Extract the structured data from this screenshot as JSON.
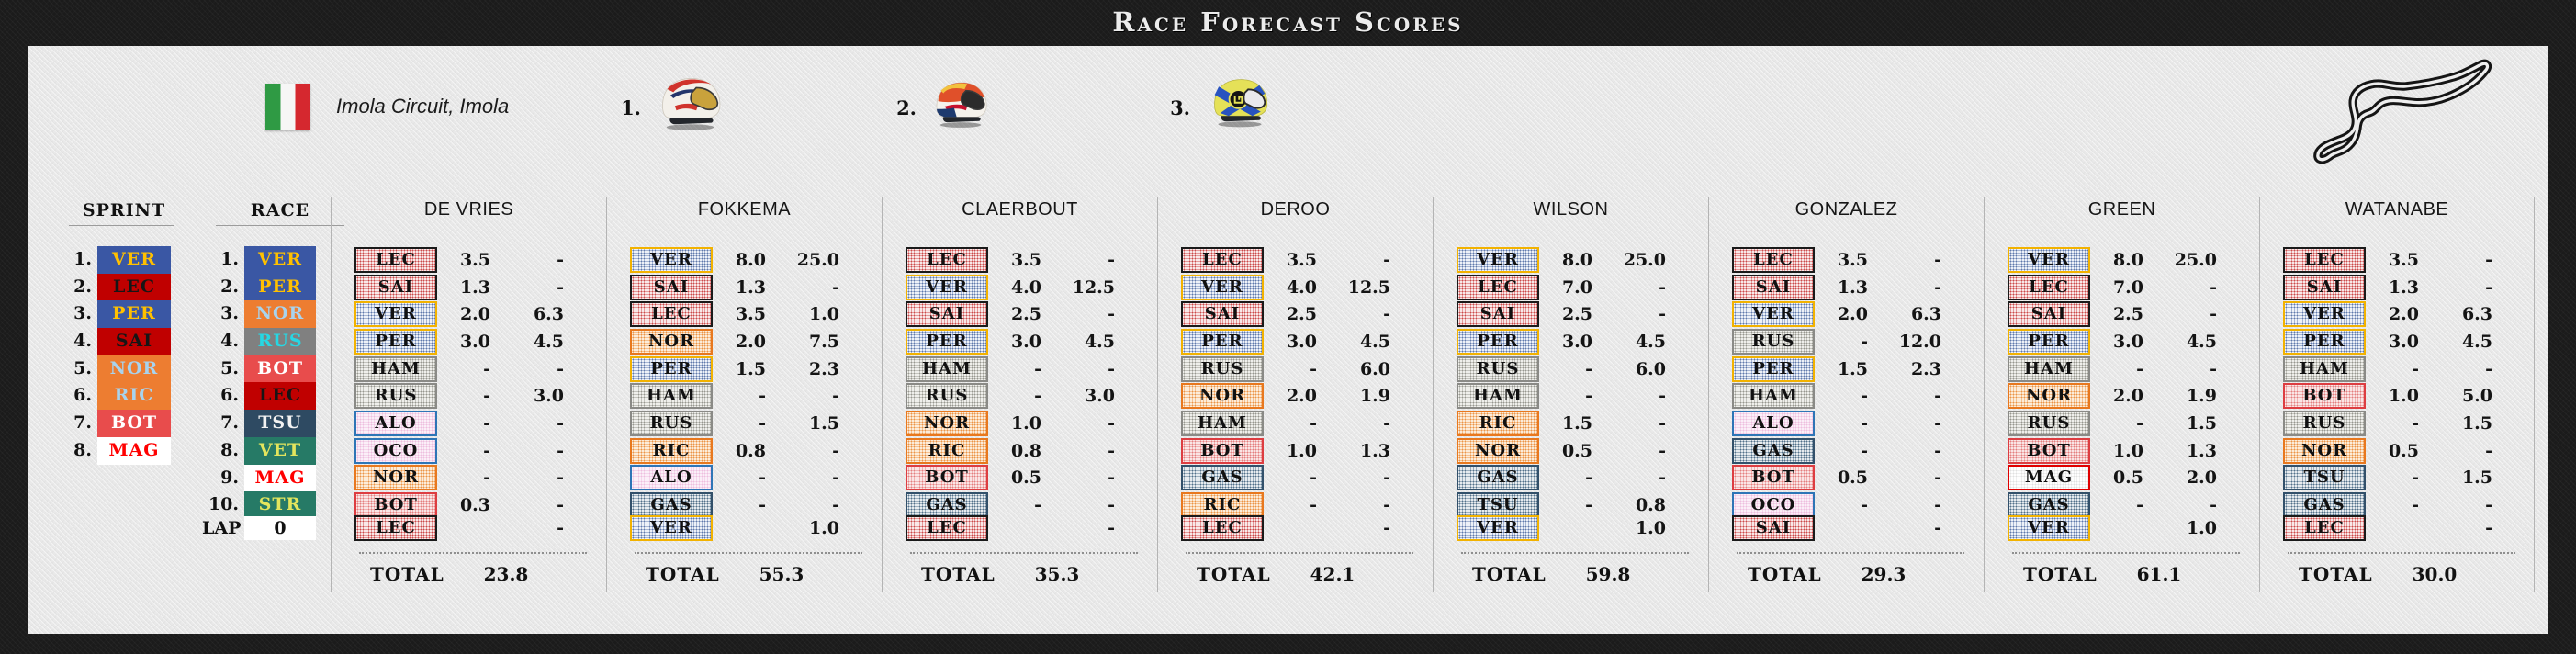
{
  "title": "Race Forecast Scores",
  "event": {
    "circuit_name": "Imola Circuit, Imola",
    "flag_country": "Italy"
  },
  "podium": [
    {
      "position": "1.",
      "helmet": "verstappen-redbull-helmet"
    },
    {
      "position": "2.",
      "helmet": "perez-redbull-helmet"
    },
    {
      "position": "3.",
      "helmet": "norris-mclaren-helmet"
    }
  ],
  "standings": {
    "sprint_label": "SPRINT",
    "race_label": "RACE",
    "lap_label": "LAP",
    "lap_value": "0",
    "sprint": [
      {
        "pos": "1.",
        "driver": "VER"
      },
      {
        "pos": "2.",
        "driver": "LEC"
      },
      {
        "pos": "3.",
        "driver": "PER"
      },
      {
        "pos": "4.",
        "driver": "SAI"
      },
      {
        "pos": "5.",
        "driver": "NOR"
      },
      {
        "pos": "6.",
        "driver": "RIC"
      },
      {
        "pos": "7.",
        "driver": "BOT"
      },
      {
        "pos": "8.",
        "driver": "MAG"
      }
    ],
    "race": [
      {
        "pos": "1.",
        "driver": "VER"
      },
      {
        "pos": "2.",
        "driver": "PER"
      },
      {
        "pos": "3.",
        "driver": "NOR"
      },
      {
        "pos": "4.",
        "driver": "RUS"
      },
      {
        "pos": "5.",
        "driver": "BOT"
      },
      {
        "pos": "6.",
        "driver": "LEC"
      },
      {
        "pos": "7.",
        "driver": "TSU"
      },
      {
        "pos": "8.",
        "driver": "VET"
      },
      {
        "pos": "9.",
        "driver": "MAG"
      },
      {
        "pos": "10.",
        "driver": "STR"
      }
    ]
  },
  "total_label": "TOTAL",
  "teams": {
    "VER": "redbull",
    "PER": "redbull",
    "LEC": "ferrari",
    "SAI": "ferrari",
    "NOR": "mclaren",
    "RIC": "mclaren",
    "HAM": "mercedes",
    "RUS": "mercedes",
    "BOT": "alfaromeo",
    "MAG": "haas",
    "TSU": "alphatauri",
    "GAS": "alphatauri",
    "VET": "astonmartin",
    "STR": "astonmartin",
    "ALO": "alpine",
    "OCO": "alpine"
  },
  "team_colors": {
    "redbull": {
      "bg": "#3a57a4",
      "text": "#ffc000",
      "tint": "#edf1f8",
      "dot": "#6079ab",
      "border": "#f2b200"
    },
    "ferrari": {
      "bg": "#c00000",
      "text": "#161616",
      "tint": "#f9e8e8",
      "dot": "#cc4a4a",
      "border": "#1a1a1a"
    },
    "mclaren": {
      "bg": "#ed7d31",
      "text": "#a8d3ee",
      "tint": "#fcecd9",
      "dot": "#eb9446",
      "border": "#e8781e"
    },
    "mercedes": {
      "bg": "#808080",
      "text": "#26d7e3",
      "tint": "#efefeb",
      "dot": "#97978f",
      "border": "#8a8a86"
    },
    "alfaromeo": {
      "bg": "#e84c4c",
      "text": "#ffffff",
      "tint": "#fae5e5",
      "dot": "#e47f7f",
      "border": "#dd3d41"
    },
    "haas": {
      "bg": "#ffffff",
      "text": "#ff0000",
      "tint": "#fefefe",
      "dot": "#e0e0e0",
      "border": "#e00000"
    },
    "alphatauri": {
      "bg": "#2e4a62",
      "text": "#f2f2f2",
      "tint": "#e6ebef",
      "dot": "#52708a",
      "border": "#32506a"
    },
    "astonmartin": {
      "bg": "#267a66",
      "text": "#e3e55d",
      "tint": "#e4efeb",
      "dot": "#5d9488",
      "border": "#1f6b59"
    },
    "alpine": {
      "bg": "#f7a8d8",
      "text": "#0a1e78",
      "tint": "#fbeff8",
      "dot": "#eebede",
      "border": "#2e75b6"
    }
  },
  "players": [
    {
      "name": "DE VRIES",
      "total": "23.8",
      "fastest_lap": {
        "driver": "LEC",
        "score": "-"
      },
      "predictions": [
        {
          "driver": "LEC",
          "sprint": "3.5",
          "race": "-"
        },
        {
          "driver": "SAI",
          "sprint": "1.3",
          "race": "-"
        },
        {
          "driver": "VER",
          "sprint": "2.0",
          "race": "6.3"
        },
        {
          "driver": "PER",
          "sprint": "3.0",
          "race": "4.5"
        },
        {
          "driver": "HAM",
          "sprint": "-",
          "race": "-"
        },
        {
          "driver": "RUS",
          "sprint": "-",
          "race": "3.0"
        },
        {
          "driver": "ALO",
          "sprint": "-",
          "race": "-"
        },
        {
          "driver": "OCO",
          "sprint": "-",
          "race": "-"
        },
        {
          "driver": "NOR",
          "sprint": "-",
          "race": "-"
        },
        {
          "driver": "BOT",
          "sprint": "0.3",
          "race": "-"
        }
      ]
    },
    {
      "name": "FOKKEMA",
      "total": "55.3",
      "fastest_lap": {
        "driver": "VER",
        "score": "1.0"
      },
      "predictions": [
        {
          "driver": "VER",
          "sprint": "8.0",
          "race": "25.0"
        },
        {
          "driver": "SAI",
          "sprint": "1.3",
          "race": "-"
        },
        {
          "driver": "LEC",
          "sprint": "3.5",
          "race": "1.0"
        },
        {
          "driver": "NOR",
          "sprint": "2.0",
          "race": "7.5"
        },
        {
          "driver": "PER",
          "sprint": "1.5",
          "race": "2.3"
        },
        {
          "driver": "HAM",
          "sprint": "-",
          "race": "-"
        },
        {
          "driver": "RUS",
          "sprint": "-",
          "race": "1.5"
        },
        {
          "driver": "RIC",
          "sprint": "0.8",
          "race": "-"
        },
        {
          "driver": "ALO",
          "sprint": "-",
          "race": "-"
        },
        {
          "driver": "GAS",
          "sprint": "-",
          "race": "-"
        }
      ]
    },
    {
      "name": "CLAERBOUT",
      "total": "35.3",
      "fastest_lap": {
        "driver": "LEC",
        "score": "-"
      },
      "predictions": [
        {
          "driver": "LEC",
          "sprint": "3.5",
          "race": "-"
        },
        {
          "driver": "VER",
          "sprint": "4.0",
          "race": "12.5"
        },
        {
          "driver": "SAI",
          "sprint": "2.5",
          "race": "-"
        },
        {
          "driver": "PER",
          "sprint": "3.0",
          "race": "4.5"
        },
        {
          "driver": "HAM",
          "sprint": "-",
          "race": "-"
        },
        {
          "driver": "RUS",
          "sprint": "-",
          "race": "3.0"
        },
        {
          "driver": "NOR",
          "sprint": "1.0",
          "race": "-"
        },
        {
          "driver": "RIC",
          "sprint": "0.8",
          "race": "-"
        },
        {
          "driver": "BOT",
          "sprint": "0.5",
          "race": "-"
        },
        {
          "driver": "GAS",
          "sprint": "-",
          "race": "-"
        }
      ]
    },
    {
      "name": "DEROO",
      "total": "42.1",
      "fastest_lap": {
        "driver": "LEC",
        "score": "-"
      },
      "predictions": [
        {
          "driver": "LEC",
          "sprint": "3.5",
          "race": "-"
        },
        {
          "driver": "VER",
          "sprint": "4.0",
          "race": "12.5"
        },
        {
          "driver": "SAI",
          "sprint": "2.5",
          "race": "-"
        },
        {
          "driver": "PER",
          "sprint": "3.0",
          "race": "4.5"
        },
        {
          "driver": "RUS",
          "sprint": "-",
          "race": "6.0"
        },
        {
          "driver": "NOR",
          "sprint": "2.0",
          "race": "1.9"
        },
        {
          "driver": "HAM",
          "sprint": "-",
          "race": "-"
        },
        {
          "driver": "BOT",
          "sprint": "1.0",
          "race": "1.3"
        },
        {
          "driver": "GAS",
          "sprint": "-",
          "race": "-"
        },
        {
          "driver": "RIC",
          "sprint": "-",
          "race": "-"
        }
      ]
    },
    {
      "name": "WILSON",
      "total": "59.8",
      "fastest_lap": {
        "driver": "VER",
        "score": "1.0"
      },
      "predictions": [
        {
          "driver": "VER",
          "sprint": "8.0",
          "race": "25.0"
        },
        {
          "driver": "LEC",
          "sprint": "7.0",
          "race": "-"
        },
        {
          "driver": "SAI",
          "sprint": "2.5",
          "race": "-"
        },
        {
          "driver": "PER",
          "sprint": "3.0",
          "race": "4.5"
        },
        {
          "driver": "RUS",
          "sprint": "-",
          "race": "6.0"
        },
        {
          "driver": "HAM",
          "sprint": "-",
          "race": "-"
        },
        {
          "driver": "RIC",
          "sprint": "1.5",
          "race": "-"
        },
        {
          "driver": "NOR",
          "sprint": "0.5",
          "race": "-"
        },
        {
          "driver": "GAS",
          "sprint": "-",
          "race": "-"
        },
        {
          "driver": "TSU",
          "sprint": "-",
          "race": "0.8"
        }
      ]
    },
    {
      "name": "GONZALEZ",
      "total": "29.3",
      "fastest_lap": {
        "driver": "SAI",
        "score": "-"
      },
      "predictions": [
        {
          "driver": "LEC",
          "sprint": "3.5",
          "race": "-"
        },
        {
          "driver": "SAI",
          "sprint": "1.3",
          "race": "-"
        },
        {
          "driver": "VER",
          "sprint": "2.0",
          "race": "6.3"
        },
        {
          "driver": "RUS",
          "sprint": "-",
          "race": "12.0"
        },
        {
          "driver": "PER",
          "sprint": "1.5",
          "race": "2.3"
        },
        {
          "driver": "HAM",
          "sprint": "-",
          "race": "-"
        },
        {
          "driver": "ALO",
          "sprint": "-",
          "race": "-"
        },
        {
          "driver": "GAS",
          "sprint": "-",
          "race": "-"
        },
        {
          "driver": "BOT",
          "sprint": "0.5",
          "race": "-"
        },
        {
          "driver": "OCO",
          "sprint": "-",
          "race": "-"
        }
      ]
    },
    {
      "name": "GREEN",
      "total": "61.1",
      "fastest_lap": {
        "driver": "VER",
        "score": "1.0"
      },
      "predictions": [
        {
          "driver": "VER",
          "sprint": "8.0",
          "race": "25.0"
        },
        {
          "driver": "LEC",
          "sprint": "7.0",
          "race": "-"
        },
        {
          "driver": "SAI",
          "sprint": "2.5",
          "race": "-"
        },
        {
          "driver": "PER",
          "sprint": "3.0",
          "race": "4.5"
        },
        {
          "driver": "HAM",
          "sprint": "-",
          "race": "-"
        },
        {
          "driver": "NOR",
          "sprint": "2.0",
          "race": "1.9"
        },
        {
          "driver": "RUS",
          "sprint": "-",
          "race": "1.5"
        },
        {
          "driver": "BOT",
          "sprint": "1.0",
          "race": "1.3"
        },
        {
          "driver": "MAG",
          "sprint": "0.5",
          "race": "2.0"
        },
        {
          "driver": "GAS",
          "sprint": "-",
          "race": "-"
        }
      ]
    },
    {
      "name": "WATANABE",
      "total": "30.0",
      "fastest_lap": {
        "driver": "LEC",
        "score": "-"
      },
      "predictions": [
        {
          "driver": "LEC",
          "sprint": "3.5",
          "race": "-"
        },
        {
          "driver": "SAI",
          "sprint": "1.3",
          "race": "-"
        },
        {
          "driver": "VER",
          "sprint": "2.0",
          "race": "6.3"
        },
        {
          "driver": "PER",
          "sprint": "3.0",
          "race": "4.5"
        },
        {
          "driver": "HAM",
          "sprint": "-",
          "race": "-"
        },
        {
          "driver": "BOT",
          "sprint": "1.0",
          "race": "5.0"
        },
        {
          "driver": "RUS",
          "sprint": "-",
          "race": "1.5"
        },
        {
          "driver": "NOR",
          "sprint": "0.5",
          "race": "-"
        },
        {
          "driver": "TSU",
          "sprint": "-",
          "race": "1.5"
        },
        {
          "driver": "GAS",
          "sprint": "-",
          "race": "-"
        }
      ]
    }
  ]
}
